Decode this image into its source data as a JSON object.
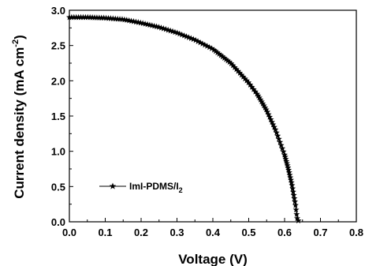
{
  "chart_data": {
    "type": "line",
    "xlabel": "Voltage (V)",
    "ylabel_parts": [
      "Current density (mA cm",
      "-2",
      ")"
    ],
    "xlim": [
      0.0,
      0.8
    ],
    "ylim": [
      0.0,
      3.0
    ],
    "xticks": [
      "0.0",
      "0.1",
      "0.2",
      "0.3",
      "0.4",
      "0.5",
      "0.6",
      "0.7",
      "0.8"
    ],
    "yticks": [
      "0.0",
      "0.5",
      "1.0",
      "1.5",
      "2.0",
      "2.5",
      "3.0"
    ],
    "legend": {
      "position": "left-middle"
    },
    "series": [
      {
        "name_parts": [
          "ImI-PDMS/I",
          "2"
        ],
        "marker": "star",
        "color": "#000000",
        "points": [
          [
            0.0,
            2.9
          ],
          [
            0.05,
            2.9
          ],
          [
            0.1,
            2.89
          ],
          [
            0.15,
            2.87
          ],
          [
            0.2,
            2.82
          ],
          [
            0.25,
            2.76
          ],
          [
            0.3,
            2.68
          ],
          [
            0.35,
            2.58
          ],
          [
            0.4,
            2.45
          ],
          [
            0.45,
            2.25
          ],
          [
            0.5,
            1.97
          ],
          [
            0.525,
            1.8
          ],
          [
            0.55,
            1.58
          ],
          [
            0.575,
            1.3
          ],
          [
            0.6,
            0.95
          ],
          [
            0.61,
            0.76
          ],
          [
            0.62,
            0.54
          ],
          [
            0.63,
            0.25
          ],
          [
            0.635,
            0.05
          ],
          [
            0.64,
            0.0
          ]
        ]
      }
    ]
  }
}
